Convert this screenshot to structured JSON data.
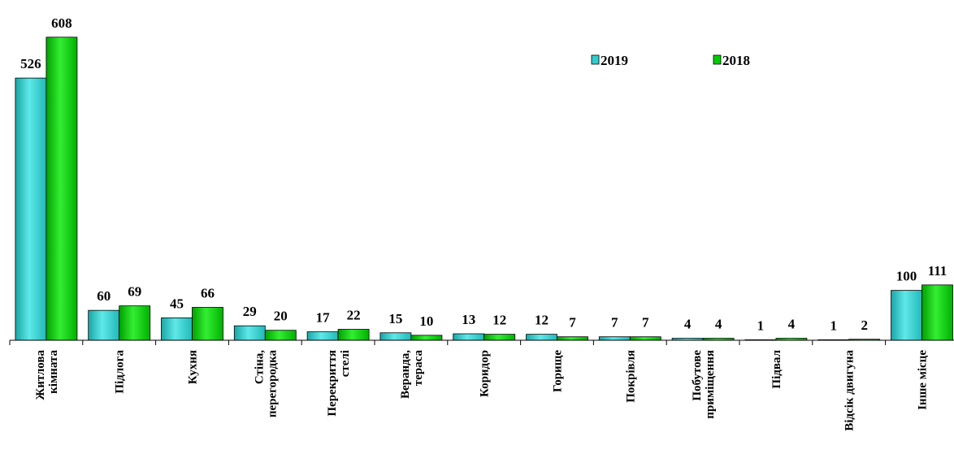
{
  "chart_data": {
    "type": "bar",
    "categories": [
      [
        "Житлова",
        "кімната"
      ],
      [
        "Підлога"
      ],
      [
        "Кухня"
      ],
      [
        "Стіна,",
        "перегородка"
      ],
      [
        "Перекриття",
        "стелі"
      ],
      [
        "Веранда,",
        "тераса"
      ],
      [
        "Коридор"
      ],
      [
        "Горище"
      ],
      [
        "Покрівля"
      ],
      [
        "Побутове",
        "приміщення"
      ],
      [
        "Підвал"
      ],
      [
        "Відсік двигуна"
      ],
      [
        "Інше місце"
      ]
    ],
    "series": [
      {
        "name": "2019",
        "color": "#33cccc",
        "values": [
          526,
          60,
          45,
          29,
          17,
          15,
          13,
          12,
          7,
          4,
          1,
          1,
          100
        ]
      },
      {
        "name": "2018",
        "color": "#00cc00",
        "values": [
          608,
          69,
          66,
          20,
          22,
          10,
          12,
          7,
          7,
          4,
          4,
          2,
          111
        ]
      }
    ],
    "ylim": [
      0,
      650
    ],
    "legend": "upper right"
  }
}
